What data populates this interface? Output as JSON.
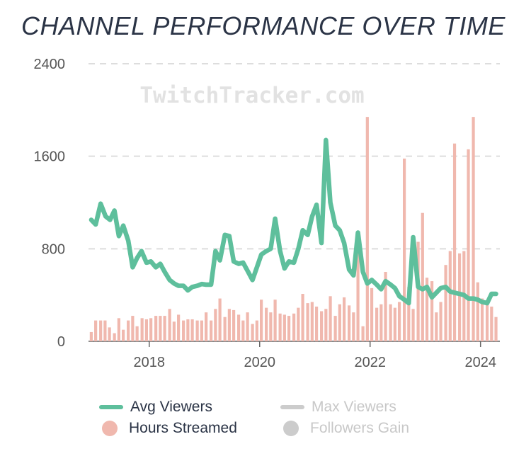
{
  "chart_data": {
    "type": "bar+line",
    "title": "CHANNEL PERFORMANCE OVER TIME",
    "watermark": "TwitchTracker.com",
    "y_ticks": [
      "0",
      "800",
      "1600",
      "2400"
    ],
    "x_ticks": [
      "2018",
      "2020",
      "2022",
      "2024"
    ],
    "ylim": [
      0,
      2400
    ],
    "x_range": [
      2016.9,
      2024.35
    ],
    "grid": true,
    "legend_position": "bottom",
    "colors": {
      "avg_viewers": "#5ebf9c",
      "hours_streamed": "#f0b8ae",
      "max_viewers": "#cccccc",
      "followers_gain": "#cccccc",
      "grid": "#dddddd",
      "axis": "#666666",
      "text": "#555555"
    },
    "series": [
      {
        "name": "Avg Viewers",
        "kind": "line",
        "x": [
          2016.95,
          2017.03,
          2017.12,
          2017.21,
          2017.29,
          2017.37,
          2017.45,
          2017.53,
          2017.62,
          2017.7,
          2017.78,
          2017.86,
          2017.95,
          2018.03,
          2018.12,
          2018.2,
          2018.28,
          2018.37,
          2018.45,
          2018.53,
          2018.62,
          2018.7,
          2018.78,
          2018.87,
          2018.95,
          2019.03,
          2019.12,
          2019.2,
          2019.28,
          2019.37,
          2019.45,
          2019.53,
          2019.62,
          2019.7,
          2019.78,
          2019.87,
          2019.95,
          2020.03,
          2020.12,
          2020.2,
          2020.28,
          2020.37,
          2020.45,
          2020.53,
          2020.62,
          2020.7,
          2020.78,
          2020.87,
          2020.95,
          2021.03,
          2021.12,
          2021.2,
          2021.28,
          2021.37,
          2021.45,
          2021.53,
          2021.62,
          2021.7,
          2021.78,
          2021.87,
          2021.95,
          2022.03,
          2022.12,
          2022.2,
          2022.28,
          2022.37,
          2022.45,
          2022.53,
          2022.62,
          2022.7,
          2022.78,
          2022.87,
          2022.95,
          2023.03,
          2023.12,
          2023.2,
          2023.28,
          2023.37,
          2023.45,
          2023.53,
          2023.62,
          2023.7,
          2023.78,
          2023.87,
          2023.95,
          2024.03,
          2024.12,
          2024.2,
          2024.28
        ],
        "values": [
          1050,
          1010,
          1190,
          1080,
          1050,
          1130,
          910,
          1000,
          870,
          640,
          720,
          780,
          680,
          690,
          640,
          670,
          600,
          530,
          500,
          480,
          480,
          440,
          470,
          480,
          495,
          490,
          490,
          780,
          700,
          920,
          910,
          690,
          670,
          680,
          610,
          530,
          640,
          750,
          780,
          800,
          1060,
          780,
          630,
          690,
          680,
          800,
          960,
          920,
          1080,
          1180,
          850,
          1740,
          1200,
          1000,
          960,
          850,
          620,
          570,
          940,
          600,
          500,
          530,
          490,
          450,
          520,
          490,
          460,
          390,
          360,
          330,
          900,
          470,
          450,
          470,
          380,
          420,
          460,
          470,
          430,
          420,
          410,
          400,
          370,
          370,
          360,
          340,
          330,
          410,
          410
        ]
      },
      {
        "name": "Hours Streamed",
        "kind": "bar",
        "x": [
          2016.95,
          2017.03,
          2017.12,
          2017.2,
          2017.28,
          2017.37,
          2017.45,
          2017.53,
          2017.62,
          2017.7,
          2017.78,
          2017.87,
          2017.95,
          2018.03,
          2018.12,
          2018.2,
          2018.28,
          2018.37,
          2018.45,
          2018.53,
          2018.62,
          2018.7,
          2018.78,
          2018.87,
          2018.95,
          2019.03,
          2019.12,
          2019.2,
          2019.28,
          2019.37,
          2019.45,
          2019.53,
          2019.62,
          2019.7,
          2019.78,
          2019.87,
          2019.95,
          2020.03,
          2020.12,
          2020.2,
          2020.28,
          2020.37,
          2020.45,
          2020.53,
          2020.62,
          2020.7,
          2020.78,
          2020.87,
          2020.95,
          2021.03,
          2021.12,
          2021.2,
          2021.28,
          2021.37,
          2021.45,
          2021.53,
          2021.62,
          2021.7,
          2021.78,
          2021.87,
          2021.95,
          2022.03,
          2022.12,
          2022.2,
          2022.28,
          2022.37,
          2022.45,
          2022.53,
          2022.62,
          2022.7,
          2022.78,
          2022.87,
          2022.95,
          2023.03,
          2023.12,
          2023.2,
          2023.28,
          2023.37,
          2023.45,
          2023.53,
          2023.62,
          2023.7,
          2023.78,
          2023.87,
          2023.95,
          2024.03,
          2024.12,
          2024.2,
          2024.28
        ],
        "values": [
          80,
          180,
          180,
          180,
          120,
          70,
          200,
          100,
          180,
          220,
          130,
          200,
          190,
          200,
          220,
          220,
          220,
          280,
          170,
          230,
          180,
          190,
          190,
          180,
          180,
          250,
          180,
          280,
          370,
          210,
          280,
          270,
          230,
          180,
          250,
          150,
          180,
          360,
          290,
          250,
          360,
          240,
          230,
          220,
          240,
          290,
          410,
          330,
          340,
          300,
          260,
          280,
          390,
          220,
          320,
          380,
          310,
          250,
          840,
          130,
          1940,
          460,
          290,
          320,
          600,
          320,
          290,
          340,
          1580,
          470,
          280,
          860,
          1110,
          550,
          520,
          250,
          340,
          660,
          780,
          1710,
          760,
          780,
          1660,
          1940,
          510,
          370,
          350,
          300,
          210
        ]
      },
      {
        "name": "Max Viewers",
        "kind": "line",
        "hidden": true
      },
      {
        "name": "Followers Gain",
        "kind": "dot",
        "hidden": true
      }
    ]
  }
}
